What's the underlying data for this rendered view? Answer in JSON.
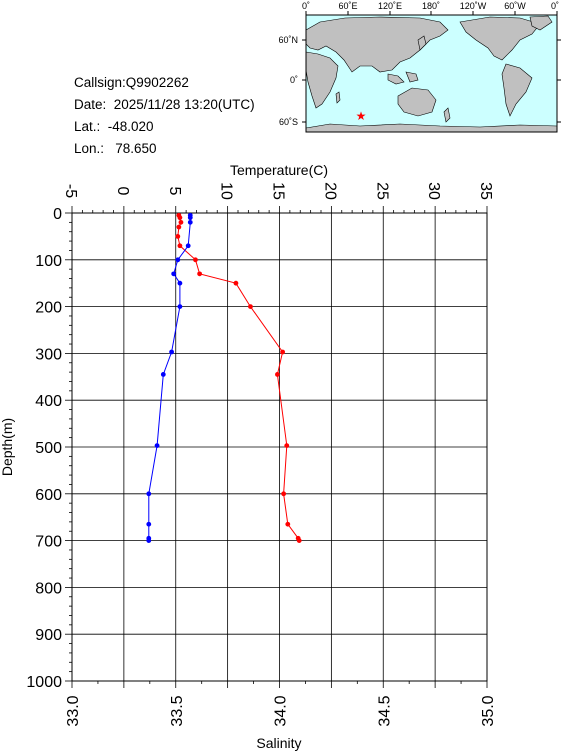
{
  "station": {
    "callsign": "Callsign:Q9902262",
    "date": "Date:  2025/11/28 13:20(UTC)",
    "lat": "Lat.:  -48.020",
    "lon": "Lon.:   78.650"
  },
  "map": {
    "top_labels": [
      "0˚",
      "60˚E",
      "120˚E",
      "180˚",
      "120˚W",
      "60˚W",
      "0˚"
    ],
    "left_labels": [
      "60˚N",
      "0˚",
      "60˚S"
    ],
    "ocean_color": "#ccffff",
    "land_color": "#c0c0c0",
    "marker": "red-star",
    "marker_color": "#ff0000"
  },
  "chart_data": {
    "type": "line",
    "xlabel_top": "Temperature(C)",
    "xlabel_bottom": "Salinity",
    "ylabel": "Depth(m)",
    "temperature_ticks": [
      "-5",
      "0",
      "5",
      "10",
      "15",
      "20",
      "25",
      "30",
      "35"
    ],
    "temperature_range": [
      -5,
      35
    ],
    "salinity_ticks": [
      "33.0",
      "33.5",
      "34.0",
      "34.5",
      "35.0"
    ],
    "salinity_range": [
      33.0,
      35.0
    ],
    "depth_ticks": [
      "0",
      "100",
      "200",
      "300",
      "400",
      "500",
      "600",
      "700",
      "800",
      "900",
      "1000"
    ],
    "depth_range": [
      0,
      1000
    ],
    "grid": true,
    "series": [
      {
        "quantity": "temperature",
        "color": "#ff0000",
        "points": [
          {
            "depth": 5,
            "value": 5.3
          },
          {
            "depth": 10,
            "value": 5.4
          },
          {
            "depth": 20,
            "value": 5.5
          },
          {
            "depth": 30,
            "value": 5.3
          },
          {
            "depth": 50,
            "value": 5.2
          },
          {
            "depth": 70,
            "value": 5.4
          },
          {
            "depth": 100,
            "value": 6.9
          },
          {
            "depth": 130,
            "value": 7.3
          },
          {
            "depth": 150,
            "value": 10.8
          },
          {
            "depth": 200,
            "value": 12.2
          },
          {
            "depth": 297,
            "value": 15.3
          },
          {
            "depth": 345,
            "value": 14.8
          },
          {
            "depth": 497,
            "value": 15.7
          },
          {
            "depth": 600,
            "value": 15.4
          },
          {
            "depth": 665,
            "value": 15.8
          },
          {
            "depth": 695,
            "value": 16.8
          },
          {
            "depth": 700,
            "value": 16.9
          }
        ]
      },
      {
        "quantity": "salinity",
        "color": "#0000ff",
        "points": [
          {
            "depth": 5,
            "value": 33.57
          },
          {
            "depth": 10,
            "value": 33.57
          },
          {
            "depth": 20,
            "value": 33.57
          },
          {
            "depth": 70,
            "value": 33.56
          },
          {
            "depth": 100,
            "value": 33.51
          },
          {
            "depth": 130,
            "value": 33.49
          },
          {
            "depth": 150,
            "value": 33.52
          },
          {
            "depth": 200,
            "value": 33.52
          },
          {
            "depth": 297,
            "value": 33.48
          },
          {
            "depth": 345,
            "value": 33.44
          },
          {
            "depth": 497,
            "value": 33.41
          },
          {
            "depth": 600,
            "value": 33.37
          },
          {
            "depth": 665,
            "value": 33.37
          },
          {
            "depth": 695,
            "value": 33.37
          },
          {
            "depth": 700,
            "value": 33.37
          }
        ]
      }
    ]
  }
}
